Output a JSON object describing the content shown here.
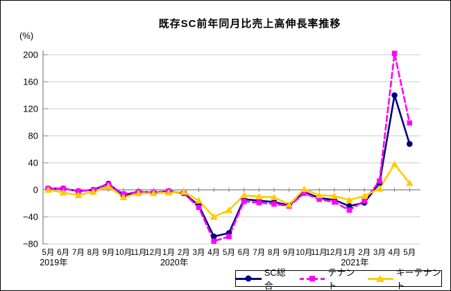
{
  "chart_data": {
    "type": "line",
    "title": "既存SC前年同月比売上高伸長率推移",
    "unit_label": "(%)",
    "grid": true,
    "legend_position": "bottom-right",
    "ylim": [
      -80,
      200
    ],
    "y_ticks": [
      200,
      160,
      120,
      80,
      40,
      0,
      -40,
      -80
    ],
    "x_labels": [
      "5月",
      "6月",
      "7月",
      "8月",
      "9月",
      "10月",
      "11月",
      "12月",
      "1月",
      "2月",
      "3月",
      "4月",
      "5月",
      "6月",
      "7月",
      "8月",
      "9月",
      "10月",
      "11月",
      "12月",
      "1月",
      "2月",
      "3月",
      "4月",
      "5月"
    ],
    "year_labels": [
      {
        "text": "2019年",
        "month_index": 0
      },
      {
        "text": "2020年",
        "month_index": 8
      },
      {
        "text": "2021年",
        "month_index": 20
      }
    ],
    "series": [
      {
        "name": "SC総合",
        "color": "#000080",
        "marker": "circle",
        "line": "solid",
        "values": [
          2,
          2,
          -2,
          0,
          9,
          -8,
          -3,
          -4,
          -2,
          -5,
          -23,
          -69,
          -64,
          -14,
          -16,
          -18,
          -23,
          -3,
          -12,
          -15,
          -24,
          -19,
          10,
          140,
          68
        ]
      },
      {
        "name": "テナント",
        "color": "#FF00FF",
        "marker": "square",
        "line": "dashed",
        "values": [
          2,
          2,
          -2,
          0,
          8,
          -6,
          -3,
          -4,
          -2,
          -5,
          -26,
          -76,
          -69,
          -17,
          -19,
          -21,
          -24,
          -5,
          -14,
          -18,
          -30,
          -16,
          13,
          202,
          99
        ]
      },
      {
        "name": "キーテナント",
        "color": "#FFCC00",
        "marker": "triangle",
        "line": "solid",
        "values": [
          0,
          -4,
          -8,
          -3,
          5,
          -11,
          -5,
          -5,
          -4,
          -3,
          -16,
          -40,
          -30,
          -8,
          -10,
          -11,
          -22,
          1,
          -8,
          -9,
          -15,
          -9,
          2,
          38,
          10
        ]
      }
    ],
    "colors": {
      "gridline": "#C9C9C9",
      "axis": "#808080",
      "text": "#000000",
      "background": "#FFFFFF"
    }
  }
}
